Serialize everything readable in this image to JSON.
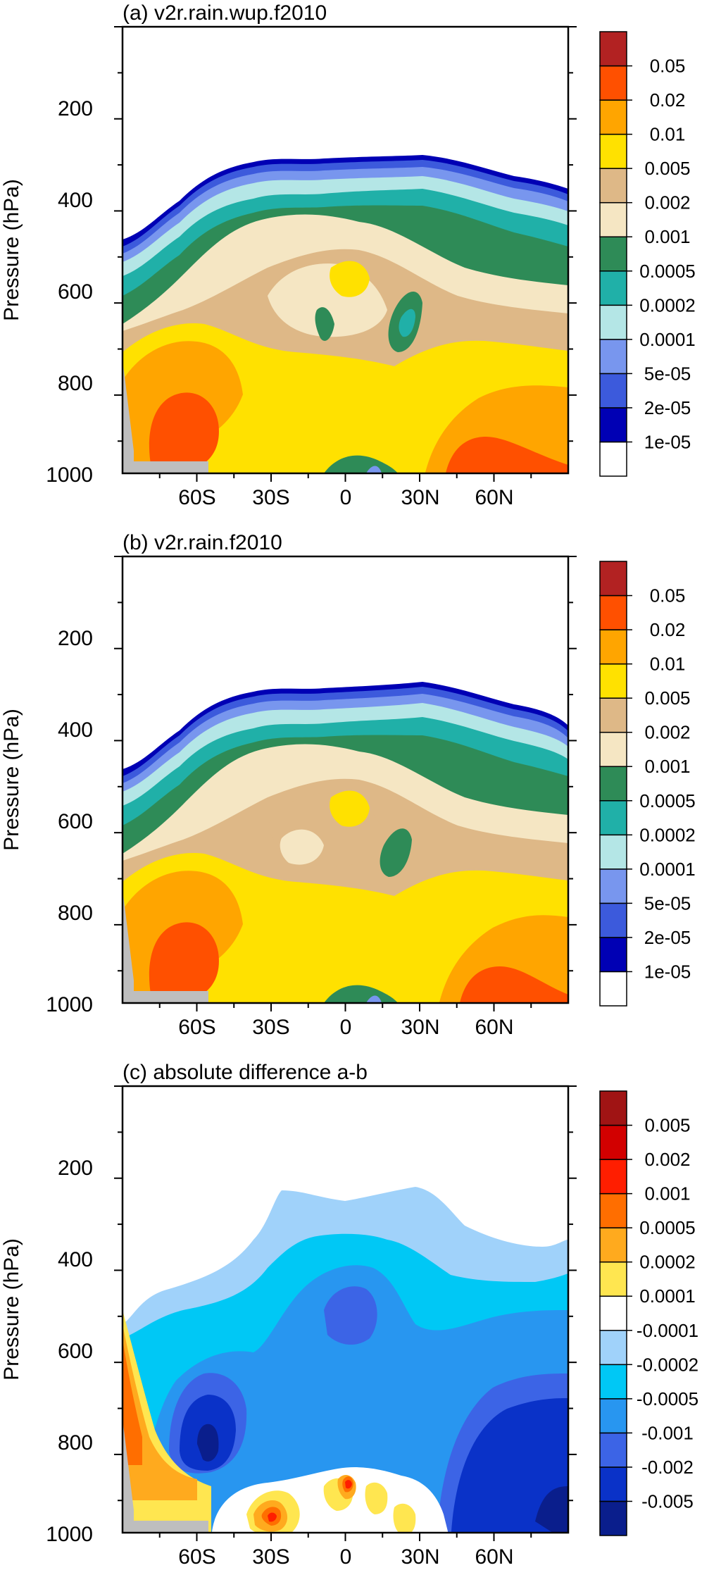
{
  "ylabel": "Pressure (hPa)",
  "y_ticks": [
    "200",
    "400",
    "600",
    "800",
    "1000"
  ],
  "x_ticks": [
    "60S",
    "30S",
    "0",
    "30N",
    "60N"
  ],
  "chart_data": [
    {
      "type": "heatmap",
      "title": "(a) v2r.rain.wup.f2010",
      "ylabel": "Pressure (hPa)",
      "x_ticks": [
        -60,
        -30,
        0,
        30,
        60
      ],
      "x_tick_labels": [
        "60S",
        "30S",
        "0",
        "30N",
        "60N"
      ],
      "y_ticks": [
        200,
        400,
        600,
        800,
        1000
      ],
      "xlim": [
        -90,
        90
      ],
      "ylim": [
        1000,
        30
      ],
      "colorbar_labels": [
        "1e-05",
        "2e-05",
        "5e-05",
        "0.0001",
        "0.0002",
        "0.0005",
        "0.001",
        "0.002",
        "0.005",
        "0.01",
        "0.02",
        "0.05"
      ],
      "colorbar_colors": [
        "#ffffff",
        "#0000b4",
        "#3c5adc",
        "#7896ee",
        "#b4e6e6",
        "#20b0a8",
        "#2e8b57",
        "#f5e6c3",
        "#deb887",
        "#ffe100",
        "#ffa500",
        "#ff5000",
        "#b22222"
      ]
    },
    {
      "type": "heatmap",
      "title": "(b) v2r.rain.f2010",
      "ylabel": "Pressure (hPa)",
      "x_ticks": [
        -60,
        -30,
        0,
        30,
        60
      ],
      "x_tick_labels": [
        "60S",
        "30S",
        "0",
        "30N",
        "60N"
      ],
      "y_ticks": [
        200,
        400,
        600,
        800,
        1000
      ],
      "xlim": [
        -90,
        90
      ],
      "ylim": [
        1000,
        30
      ],
      "colorbar_labels": [
        "1e-05",
        "2e-05",
        "5e-05",
        "0.0001",
        "0.0002",
        "0.0005",
        "0.001",
        "0.002",
        "0.005",
        "0.01",
        "0.02",
        "0.05"
      ],
      "colorbar_colors": [
        "#ffffff",
        "#0000b4",
        "#3c5adc",
        "#7896ee",
        "#b4e6e6",
        "#20b0a8",
        "#2e8b57",
        "#f5e6c3",
        "#deb887",
        "#ffe100",
        "#ffa500",
        "#ff5000",
        "#b22222"
      ]
    },
    {
      "type": "heatmap",
      "title": "(c) absolute difference a-b",
      "ylabel": "Pressure (hPa)",
      "x_ticks": [
        -60,
        -30,
        0,
        30,
        60
      ],
      "x_tick_labels": [
        "60S",
        "30S",
        "0",
        "30N",
        "60N"
      ],
      "y_ticks": [
        200,
        400,
        600,
        800,
        1000
      ],
      "xlim": [
        -90,
        90
      ],
      "ylim": [
        1000,
        30
      ],
      "colorbar_labels": [
        "-0.005",
        "-0.002",
        "-0.001",
        "-0.0005",
        "-0.0002",
        "-0.0001",
        "0.0001",
        "0.0002",
        "0.0005",
        "0.001",
        "0.002",
        "0.005"
      ],
      "colorbar_colors": [
        "#0a1e8c",
        "#0a32c8",
        "#3c64e6",
        "#2896f0",
        "#00c8f5",
        "#a0d2fa",
        "#ffffff",
        "#ffe650",
        "#ffaa1e",
        "#ff6e00",
        "#ff1e00",
        "#d20000",
        "#a01414"
      ]
    }
  ]
}
